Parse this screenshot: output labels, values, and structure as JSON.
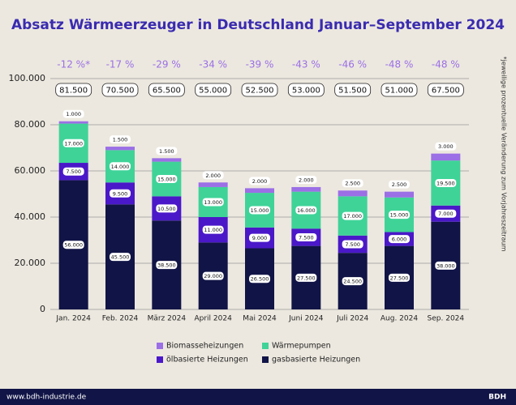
{
  "chart_data": {
    "type": "stacked_bar",
    "title": "Absatz Wärmeerzeuger in Deutschland Januar–September 2024",
    "categories": [
      "Jan. 2024",
      "Feb. 2024",
      "März 2024",
      "April 2024",
      "Mai 2024",
      "Juni 2024",
      "Juli 2024",
      "Aug. 2024",
      "Sep. 2024"
    ],
    "series": [
      {
        "name": "gasbasierte Heizungen",
        "color": "#111446",
        "values": [
          56000,
          45500,
          38500,
          29000,
          26500,
          27500,
          24500,
          27500,
          38000
        ],
        "value_labels": [
          "56.000",
          "45.500",
          "38.500",
          "29.000",
          "26.500",
          "27.500",
          "24.500",
          "27.500",
          "38.000"
        ]
      },
      {
        "name": "ölbasierte Heizungen",
        "color": "#4a18c8",
        "values": [
          7500,
          9500,
          10500,
          11000,
          9000,
          7500,
          7500,
          6000,
          7000
        ],
        "value_labels": [
          "7.500",
          "9.500",
          "10.500",
          "11.000",
          "9.000",
          "7.500",
          "7.500",
          "6.000",
          "7.000"
        ]
      },
      {
        "name": "Wärmepumpen",
        "color": "#3fd398",
        "values": [
          17000,
          14000,
          15000,
          13000,
          15000,
          16000,
          17000,
          15000,
          19500
        ],
        "value_labels": [
          "17.000",
          "14.000",
          "15.000",
          "13.000",
          "15.000",
          "16.000",
          "17.000",
          "15.000",
          "19.500"
        ]
      },
      {
        "name": "Biomasseheizungen",
        "color": "#9b6fe6",
        "values": [
          1000,
          1500,
          1500,
          2000,
          2000,
          2000,
          2500,
          2500,
          3000
        ],
        "value_labels": [
          "1.000",
          "1.500",
          "1.500",
          "2.000",
          "2.000",
          "2.000",
          "2.500",
          "2.500",
          "3.000"
        ]
      }
    ],
    "totals": {
      "values": [
        81500,
        70500,
        65500,
        55000,
        52500,
        53000,
        51500,
        51000,
        67500
      ],
      "value_labels": [
        "81.500",
        "70.500",
        "65.500",
        "55.000",
        "52.500",
        "53.000",
        "51.500",
        "51.000",
        "67.500"
      ]
    },
    "changes": {
      "values": [
        -12,
        -17,
        -29,
        -34,
        -39,
        -43,
        -46,
        -48,
        -48
      ],
      "value_labels": [
        "-12 %*",
        "-17 %",
        "-29 %",
        "-34 %",
        "-39 %",
        "-43 %",
        "-46 %",
        "-48 %",
        "-48 %"
      ]
    },
    "footnote": "*jeweilige prozentuelle Veränderung zum Vorjahreszeitraum",
    "ylim": [
      0,
      100000
    ],
    "yticks": [
      0,
      {
        "value": 20000,
        "label": "20.000"
      },
      {
        "value": 40000,
        "label": "40.000"
      },
      {
        "value": 60000,
        "label": "60.000"
      },
      {
        "value": 80000,
        "label": "80.000"
      },
      {
        "value": 100000,
        "label": "100.000"
      }
    ],
    "grid": true
  },
  "footer": {
    "url": "www.bdh-industrie.de",
    "brand": "BDH"
  }
}
